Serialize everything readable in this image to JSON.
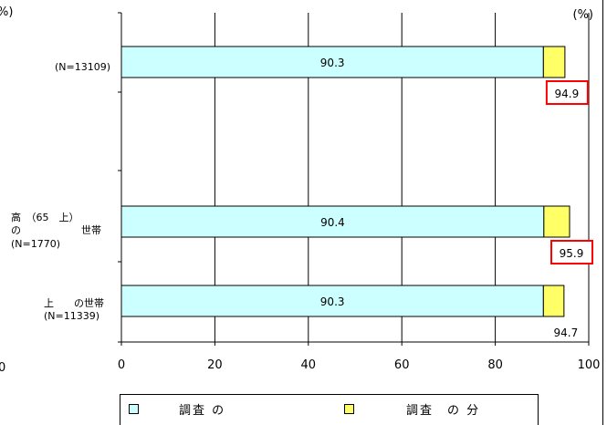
{
  "chart_data": {
    "type": "bar",
    "stacked": true,
    "orientation": "horizontal",
    "categories": [
      {
        "lines": [
          "(N=13109)"
        ]
      },
      {
        "lines": [
          "高　（65　上）",
          "の　　　　　　世帯",
          "(N=1770)"
        ]
      },
      {
        "lines": [
          "上　　の世帯",
          "(N=11339)"
        ]
      }
    ],
    "series": [
      {
        "name": "調査 の",
        "color": "#ccffff",
        "values": [
          90.3,
          90.4,
          90.3
        ],
        "labels": [
          "90.3",
          "90.4",
          "90.3"
        ]
      },
      {
        "name": "調査　の 分",
        "color": "#ffff66",
        "values": [
          4.6,
          5.5,
          4.4
        ]
      }
    ],
    "totals": [
      "94.9",
      "95.9",
      "94.7"
    ],
    "highlighted_totals": [
      true,
      true,
      false
    ],
    "highlight_color": "#ff0000",
    "x_ticks": [
      "0",
      "20",
      "40",
      "60",
      "80",
      "100"
    ],
    "xlim": [
      0,
      100
    ],
    "unit_label": "(%)",
    "left_cut_unit": "%)",
    "left_cut_zero": "0",
    "grid": true,
    "legend_position": "bottom"
  }
}
